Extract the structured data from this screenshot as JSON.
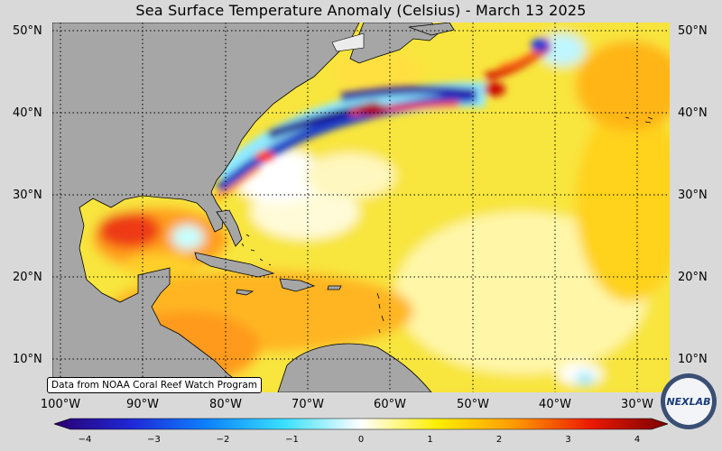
{
  "title": "Sea Surface Temperature Anomaly (Celsius) - March 13 2025",
  "credit": "Data from NOAA Coral Reef Watch Program",
  "logo_text": "NEXLAB",
  "lat_labels": [
    "50°N",
    "40°N",
    "30°N",
    "20°N",
    "10°N"
  ],
  "lon_labels": [
    "100°W",
    "90°W",
    "80°W",
    "70°W",
    "60°W",
    "50°W",
    "40°W",
    "30°W"
  ],
  "colorbar": {
    "ticks": [
      "−4",
      "−3",
      "−2",
      "−1",
      "0",
      "1",
      "2",
      "3",
      "4"
    ],
    "range": [
      -4,
      4
    ],
    "colors": [
      "#2a006e",
      "#1f27d6",
      "#0d82ff",
      "#39e0ff",
      "#ffffff",
      "#ffee00",
      "#ff9a00",
      "#ea1a00",
      "#7a0000"
    ]
  },
  "land_color": "#a6a6a6"
}
